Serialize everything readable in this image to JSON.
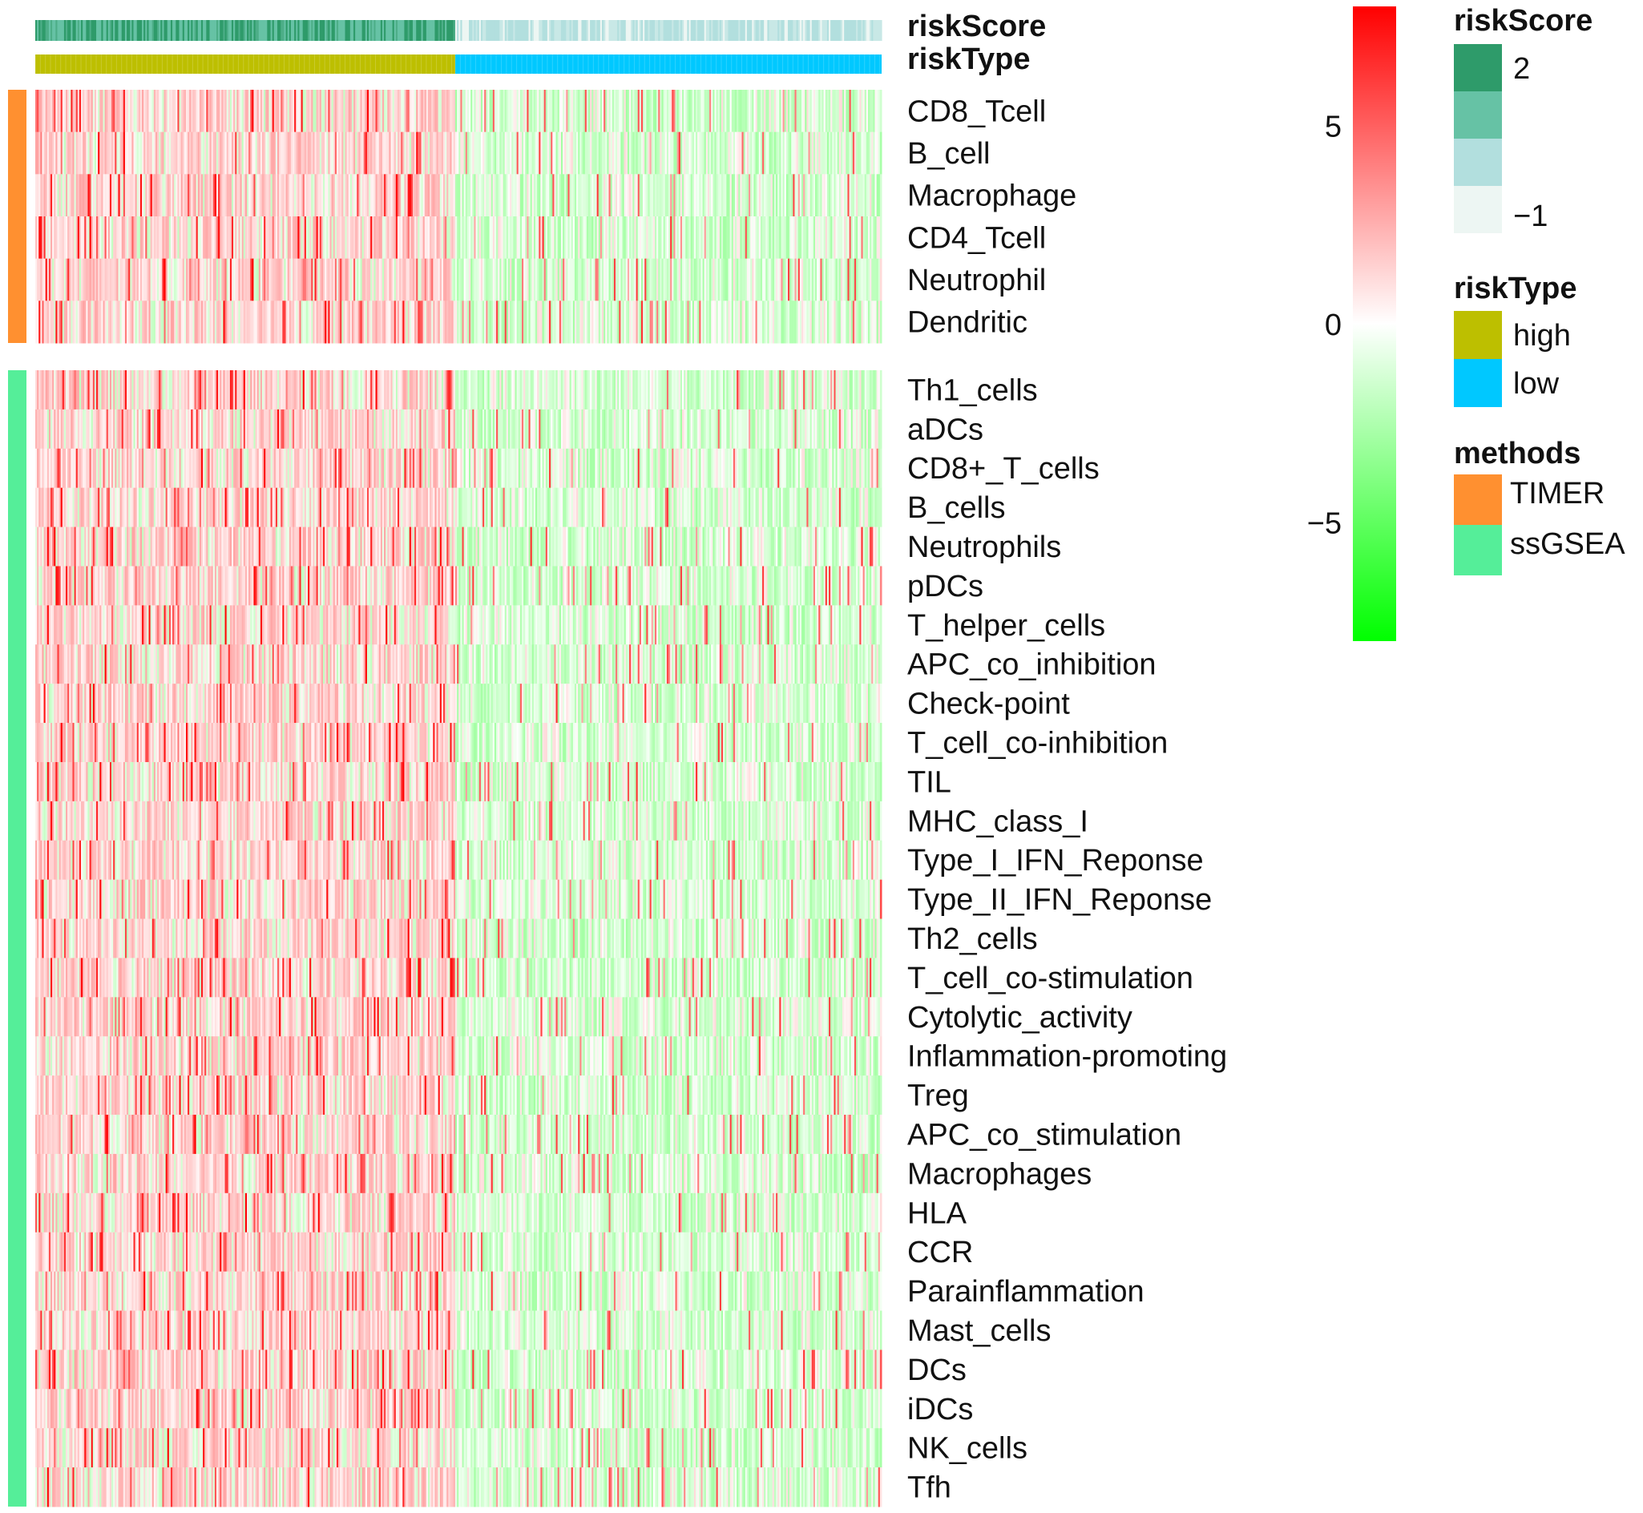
{
  "chart_data": {
    "type": "heatmap",
    "annotation_tracks": [
      {
        "name": "riskScore",
        "label": "riskScore"
      },
      {
        "name": "riskType",
        "label": "riskType"
      }
    ],
    "column_groups": [
      {
        "name": "high",
        "color": "#BDBF00"
      },
      {
        "name": "low",
        "color": "#00C8FF"
      }
    ],
    "row_groups": [
      {
        "method": "TIMER",
        "color": "#FF9030",
        "rows": [
          "CD8_Tcell",
          "B_cell",
          "Macrophage",
          "CD4_Tcell",
          "Neutrophil",
          "Dendritic"
        ]
      },
      {
        "method": "ssGSEA",
        "color": "#55EE99",
        "rows": [
          "Th1_cells",
          "aDCs",
          "CD8+_T_cells",
          "B_cells",
          "Neutrophils",
          "pDCs",
          "T_helper_cells",
          "APC_co_inhibition",
          "Check-point",
          "T_cell_co-inhibition",
          "TIL",
          "MHC_class_I",
          "Type_I_IFN_Reponse",
          "Type_II_IFN_Reponse",
          "Th2_cells",
          "T_cell_co-stimulation",
          "Cytolytic_activity",
          "Inflammation-promoting",
          "Treg",
          "APC_co_stimulation",
          "Macrophages",
          "HLA",
          "CCR",
          "Parainflammation",
          "Mast_cells",
          "DCs",
          "iDCs",
          "NK_cells",
          "Tfh"
        ]
      }
    ],
    "color_scale": {
      "min": -8,
      "max": 8,
      "colors": {
        "low": "#00FF00",
        "mid": "#FFFFFF",
        "high": "#FF0000"
      },
      "ticks": [
        5,
        0,
        -5
      ],
      "tick_labels": [
        "5",
        "0",
        "−5"
      ]
    },
    "legends": {
      "riskScore": {
        "title": "riskScore",
        "swatch_colors": [
          "#2E9B6A",
          "#66C2A5",
          "#B2DFDE",
          "#EDF6F3"
        ],
        "labels": [
          "2",
          "−1"
        ]
      },
      "riskType": {
        "title": "riskType",
        "items": [
          {
            "label": "high",
            "color": "#BDBF00"
          },
          {
            "label": "low",
            "color": "#00C8FF"
          }
        ]
      },
      "methods": {
        "title": "methods",
        "items": [
          {
            "label": "TIMER",
            "color": "#FF9030"
          },
          {
            "label": "ssGSEA",
            "color": "#55EE99"
          }
        ]
      }
    }
  }
}
